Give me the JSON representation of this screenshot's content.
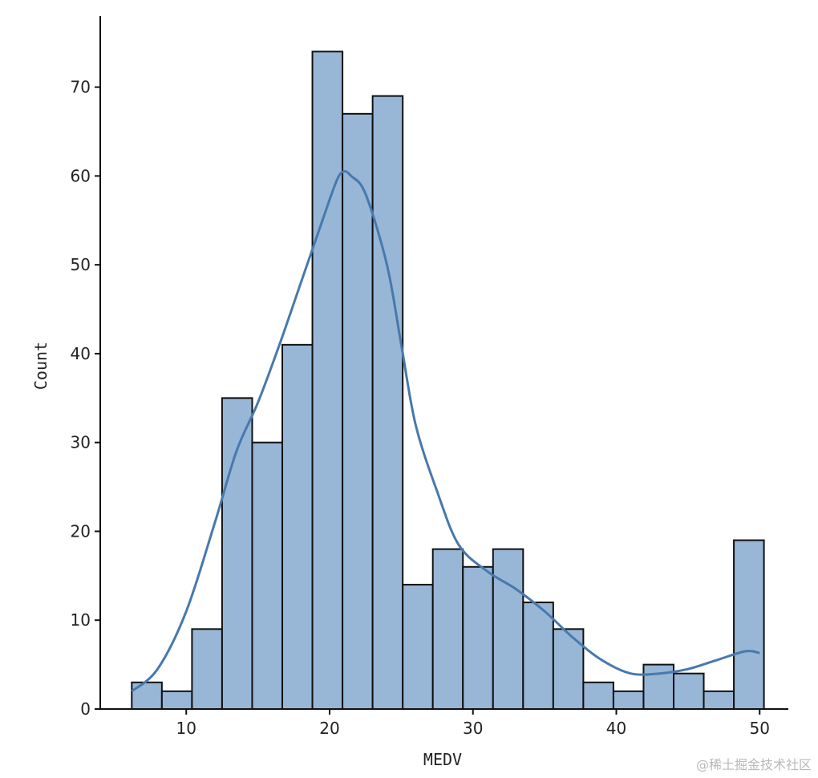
{
  "chart_data": {
    "type": "histogram",
    "title": "",
    "xlabel": "MEDV",
    "ylabel": "Count",
    "xlim": [
      4,
      52
    ],
    "ylim": [
      0,
      78
    ],
    "xticks": [
      10,
      20,
      30,
      40,
      50
    ],
    "yticks": [
      0,
      10,
      20,
      30,
      40,
      50,
      60,
      70
    ],
    "bin_edges": [
      6.2,
      8.3,
      10.4,
      12.5,
      14.6,
      16.7,
      18.8,
      20.9,
      23.0,
      25.1,
      27.2,
      29.3,
      31.4,
      33.5,
      35.6,
      37.7,
      39.8,
      41.9,
      44.0,
      46.1,
      48.2,
      50.3
    ],
    "counts": [
      3,
      2,
      9,
      35,
      30,
      41,
      74,
      67,
      69,
      14,
      18,
      16,
      18,
      12,
      9,
      3,
      2,
      5,
      4,
      2,
      19
    ],
    "kde": {
      "x": [
        6.2,
        8,
        10,
        12,
        13.5,
        15,
        16.5,
        18,
        19.5,
        20.5,
        21,
        21.5,
        22.5,
        24,
        25,
        26,
        27.5,
        29,
        31,
        33,
        35,
        37,
        39,
        41,
        43,
        45,
        47,
        49,
        50
      ],
      "y": [
        2,
        4.5,
        11,
        21,
        29,
        34.5,
        41,
        48,
        55,
        59.5,
        60.5,
        60,
        58,
        50,
        41,
        32,
        24.5,
        18.5,
        15.5,
        13.5,
        11,
        8,
        5.5,
        4,
        4,
        4.5,
        5.5,
        6.5,
        6.3
      ]
    },
    "colors": {
      "bar_fill": "#98b6d6",
      "bar_edge": "#111111",
      "kde_line": "#4779ad",
      "axis": "#111111"
    }
  },
  "watermark": "@稀土掘金技术社区"
}
